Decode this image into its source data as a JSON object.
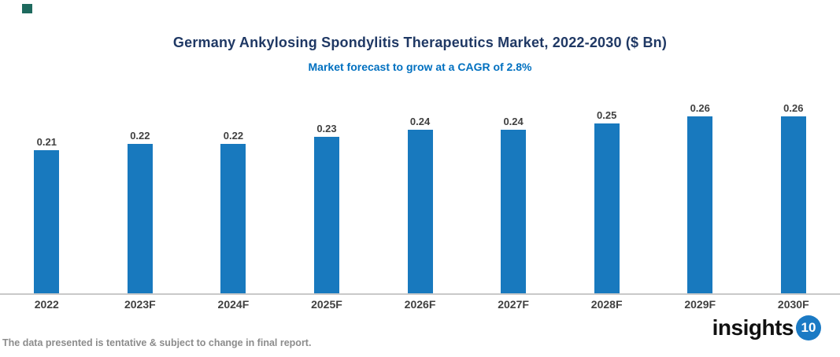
{
  "page": {
    "background_color": "#FFFFFF"
  },
  "decor": {
    "corner_square_color": "#1E6A5E"
  },
  "header": {
    "title": "Germany Ankylosing Spondylitis Therapeutics Market, 2022-2030 ($ Bn)",
    "subtitle": "Market forecast to grow at a CAGR of 2.8%",
    "title_color": "#1F3864",
    "subtitle_color": "#0070C0"
  },
  "chart_data": {
    "type": "bar",
    "title": "Germany Ankylosing Spondylitis Therapeutics Market, 2022-2030 ($ Bn)",
    "subtitle": "Market forecast to grow at a CAGR of 2.8%",
    "categories": [
      "2022",
      "2023F",
      "2024F",
      "2025F",
      "2026F",
      "2027F",
      "2028F",
      "2029F",
      "2030F"
    ],
    "values": [
      0.21,
      0.22,
      0.22,
      0.23,
      0.24,
      0.24,
      0.25,
      0.26,
      0.26
    ],
    "value_labels": [
      "0.21",
      "0.22",
      "0.22",
      "0.23",
      "0.24",
      "0.24",
      "0.25",
      "0.26",
      "0.26"
    ],
    "xlabel": "",
    "ylabel": "",
    "ylim": [
      0,
      0.3
    ],
    "grid": false,
    "legend": "none",
    "bar_color": "#1879BE",
    "axis_line_color": "#C9C9C9",
    "data_label_color": "#404040"
  },
  "footer": {
    "note": "The data presented is tentative & subject to change in final report.",
    "brand_name": "insights",
    "brand_badge": "10",
    "brand_badge_color": "#1B7AC4"
  }
}
